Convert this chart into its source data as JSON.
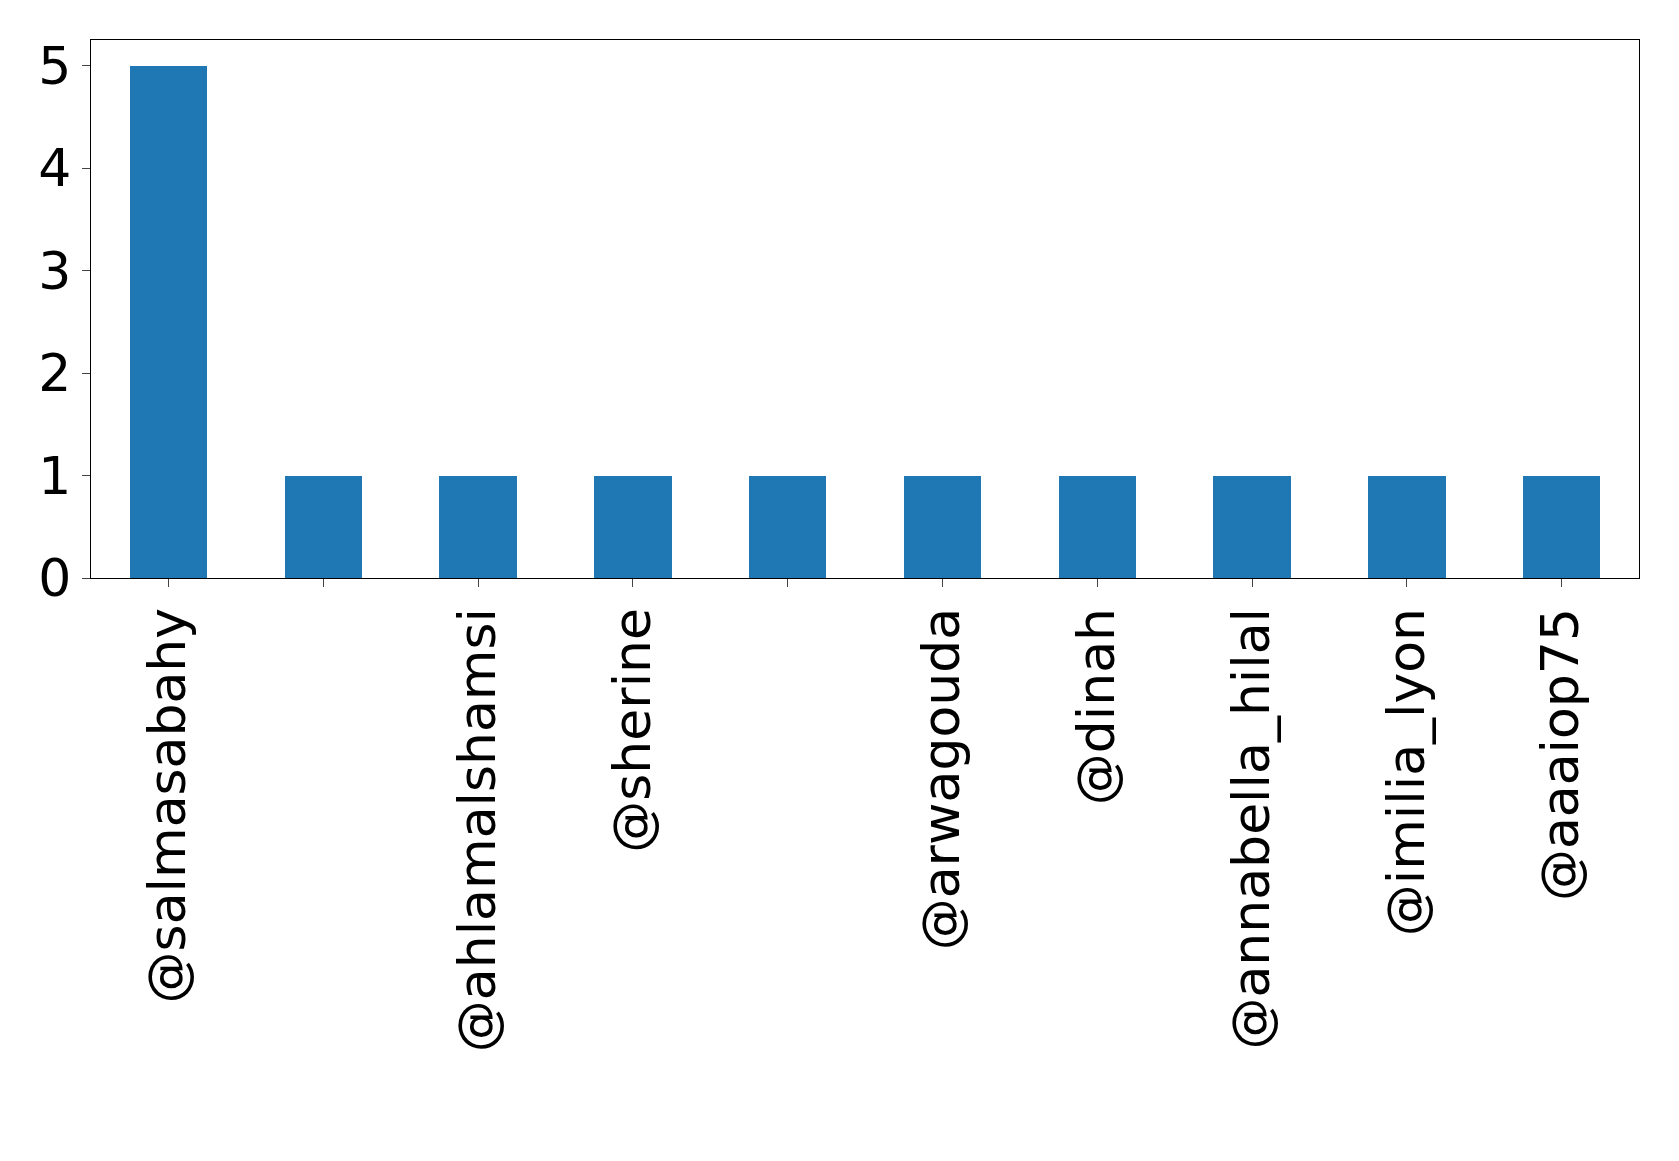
{
  "chart_data": {
    "type": "bar",
    "categories": [
      "@salmasabahy",
      null,
      "@ahlamalshamsi",
      "@sherine",
      null,
      "@arwagouda",
      "@dinah",
      "@annabella_hilal",
      "@imilia_lyon",
      "@aaaiop75"
    ],
    "values": [
      5,
      1,
      1,
      1,
      1,
      1,
      1,
      1,
      1,
      1
    ],
    "color": "#1f77b4",
    "ylim": [
      0,
      5.25
    ],
    "yticks": [
      0,
      1,
      2,
      3,
      4,
      5
    ],
    "grid": false,
    "legend": false
  }
}
